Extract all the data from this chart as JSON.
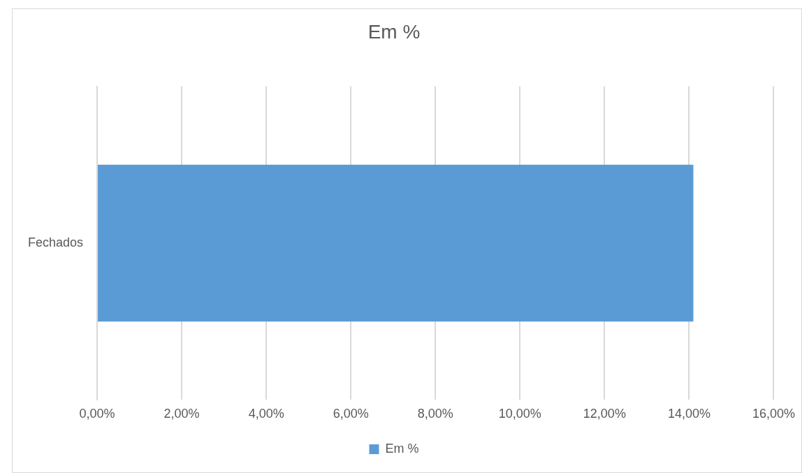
{
  "chart_data": {
    "type": "bar",
    "orientation": "horizontal",
    "title": "Em %",
    "categories": [
      "Fechados"
    ],
    "series": [
      {
        "name": "Em %",
        "color": "#5b9bd5",
        "values": [
          14.1
        ]
      }
    ],
    "xlim": [
      0,
      16
    ],
    "xticks": [
      {
        "value": 0,
        "label": "0,00%"
      },
      {
        "value": 2,
        "label": "2,00%"
      },
      {
        "value": 4,
        "label": "4,00%"
      },
      {
        "value": 6,
        "label": "6,00%"
      },
      {
        "value": 8,
        "label": "8,00%"
      },
      {
        "value": 10,
        "label": "10,00%"
      },
      {
        "value": 12,
        "label": "12,00%"
      },
      {
        "value": 14,
        "label": "14,00%"
      },
      {
        "value": 16,
        "label": "16,00%"
      }
    ],
    "grid": "x",
    "legend": "bottom"
  }
}
